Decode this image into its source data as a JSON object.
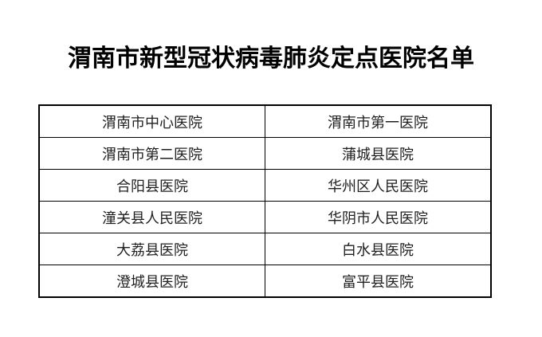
{
  "title": "渭南市新型冠状病毒肺炎定点医院名单",
  "table": {
    "rows": [
      [
        "渭南市中心医院",
        "渭南市第一医院"
      ],
      [
        "渭南市第二医院",
        "蒲城县医院"
      ],
      [
        "合阳县医院",
        "华州区人民医院"
      ],
      [
        "潼关县人民医院",
        "华阴市人民医院"
      ],
      [
        "大荔县医院",
        "白水县医院"
      ],
      [
        "澄城县医院",
        "富平县医院"
      ]
    ]
  }
}
